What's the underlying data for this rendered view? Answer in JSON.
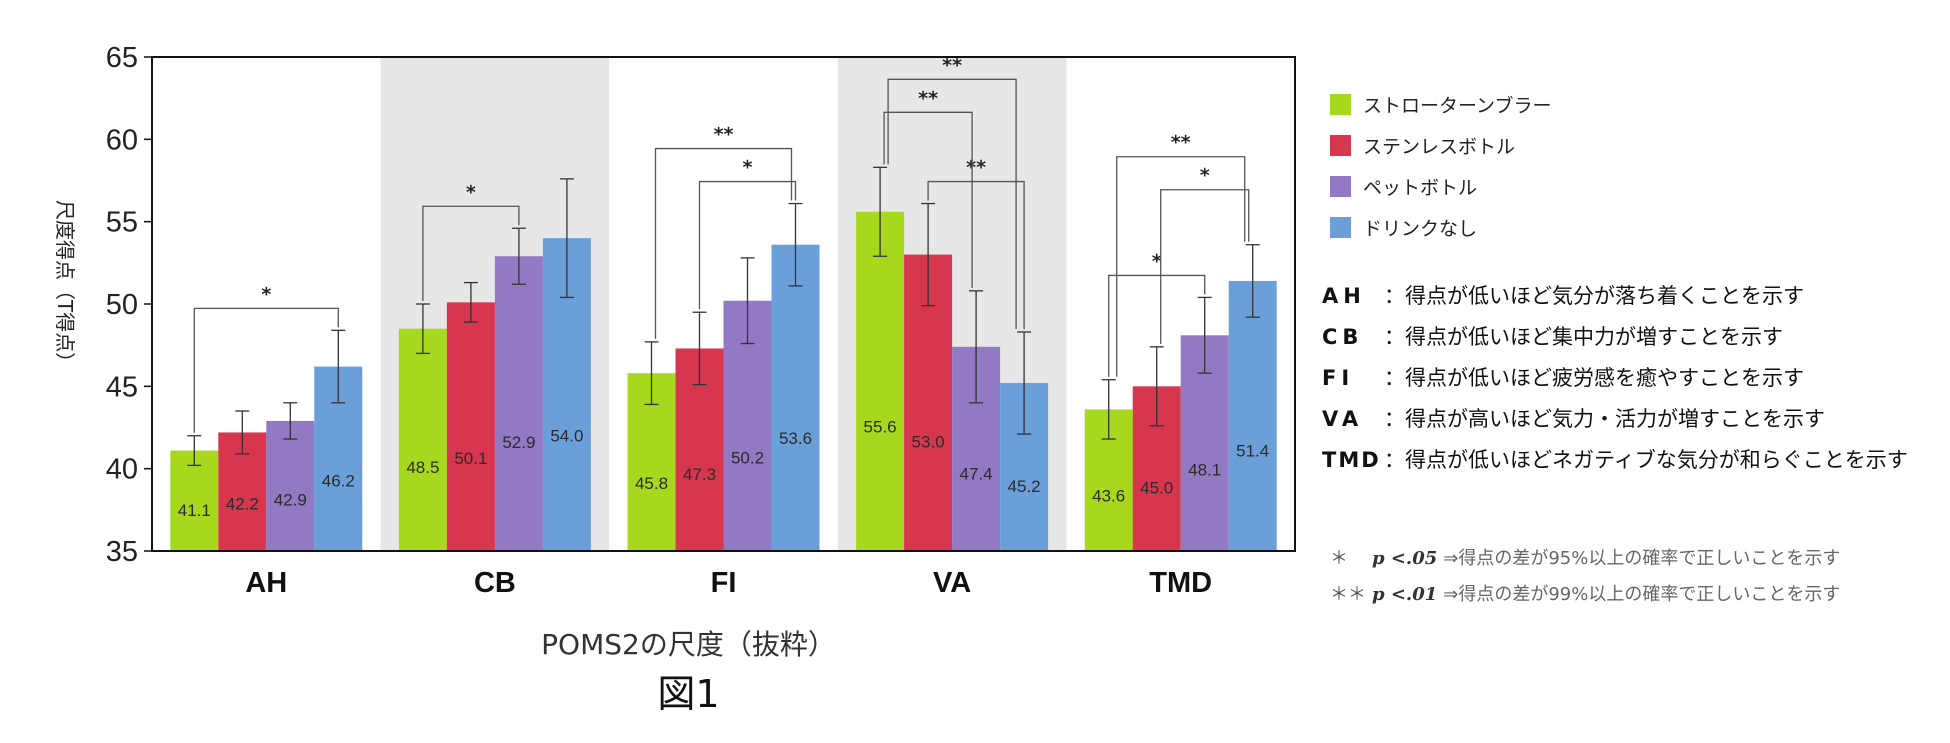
{
  "chart_data": {
    "type": "bar",
    "categories": [
      "AH",
      "CB",
      "FI",
      "VA",
      "TMD"
    ],
    "shaded_categories": [
      "CB",
      "VA"
    ],
    "ylabel": "尺度得点（T得点）",
    "xlabel": "POMS2の尺度（抜粋）",
    "title": "図1",
    "ylim": [
      35,
      65
    ],
    "yticks": [
      35,
      40,
      45,
      50,
      55,
      60,
      65
    ],
    "grid": false,
    "legend_position": "right",
    "series": [
      {
        "name": "ストローターンブラー",
        "color": "#a8d81e",
        "values": [
          41.1,
          48.5,
          45.8,
          55.6,
          43.6
        ],
        "errors": [
          0.9,
          1.5,
          1.9,
          2.7,
          1.8
        ]
      },
      {
        "name": "ステンレスボトル",
        "color": "#d7364f",
        "values": [
          42.2,
          50.1,
          47.3,
          53.0,
          45.0
        ],
        "errors": [
          1.3,
          1.2,
          2.2,
          3.1,
          2.4
        ]
      },
      {
        "name": "ペットボトル",
        "color": "#9279c3",
        "values": [
          42.9,
          52.9,
          50.2,
          47.4,
          48.1
        ],
        "errors": [
          1.1,
          1.7,
          2.6,
          3.4,
          2.3
        ]
      },
      {
        "name": "ドリンクなし",
        "color": "#6a9fd9",
        "values": [
          46.2,
          54.0,
          53.6,
          45.2,
          51.4
        ],
        "errors": [
          2.2,
          3.6,
          2.5,
          3.1,
          2.2
        ]
      }
    ],
    "significance": [
      {
        "category": "AH",
        "from": 0,
        "to": 3,
        "label": "*",
        "level": 1
      },
      {
        "category": "CB",
        "from": 0,
        "to": 2,
        "label": "*",
        "level": 1
      },
      {
        "category": "FI",
        "from": 1,
        "to": 3,
        "label": "*",
        "level": 1
      },
      {
        "category": "FI",
        "from": 0,
        "to": 3,
        "label": "**",
        "level": 2
      },
      {
        "category": "VA",
        "from": 1,
        "to": 3,
        "label": "**",
        "level": 1
      },
      {
        "category": "VA",
        "from": 0,
        "to": 2,
        "label": "**",
        "level": 2
      },
      {
        "category": "VA",
        "from": 0,
        "to": 3,
        "label": "**",
        "level": 3
      },
      {
        "category": "TMD",
        "from": 0,
        "to": 2,
        "label": "*",
        "level": 1
      },
      {
        "category": "TMD",
        "from": 1,
        "to": 3,
        "label": "*",
        "level": 2
      },
      {
        "category": "TMD",
        "from": 0,
        "to": 3,
        "label": "**",
        "level": 3
      }
    ]
  },
  "notes": [
    {
      "key": "AH",
      "text": "：得点が低いほど気分が落ち着くことを示す"
    },
    {
      "key": "CB",
      "text": "：得点が低いほど集中力が増すことを示す"
    },
    {
      "key": "FI",
      "text": "：得点が低いほど疲労感を癒やすことを示す"
    },
    {
      "key": "VA",
      "text": "：得点が高いほど気力・活力が増すことを示す"
    },
    {
      "key": "TMD",
      "text": "：得点が低いほどネガティブな気分が和らぐことを示す"
    }
  ],
  "significance_notes": [
    {
      "mark": "＊",
      "p": "p <.05",
      "text": "⇒得点の差が95%以上の確率で正しいことを示す"
    },
    {
      "mark": "＊＊",
      "p": "p <.01",
      "text": "⇒得点の差が99%以上の確率で正しいことを示す"
    }
  ]
}
